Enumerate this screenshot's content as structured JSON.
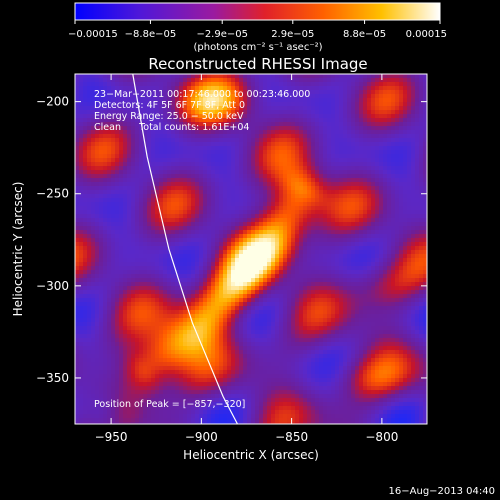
{
  "chart_data": {
    "type": "heatmap",
    "title": "Reconstructed RHESSI Image",
    "xlabel": "Heliocentric X (arcsec)",
    "ylabel": "Heliocentric Y (arcsec)",
    "xlim": [
      -970,
      -775
    ],
    "ylim": [
      -375,
      -185
    ],
    "x_ticks": [
      -950,
      -900,
      -850,
      -800
    ],
    "x_tick_labels": [
      "−950",
      "−900",
      "−850",
      "−800"
    ],
    "y_ticks": [
      -200,
      -250,
      -300,
      -350
    ],
    "y_tick_labels": [
      "−200",
      "−250",
      "−300",
      "−350"
    ],
    "colorbar": {
      "range": [
        -0.00015,
        0.00015
      ],
      "ticks": [
        -0.00015,
        -8.8e-05,
        -2.9e-05,
        2.9e-05,
        8.8e-05,
        0.00015
      ],
      "tick_labels": [
        "−0.00015",
        "−8.8e−05",
        "−2.9e−05",
        "2.9e−05",
        "8.8e−05",
        "0.00015"
      ],
      "units_label": "(photons cm⁻² s⁻¹ asec⁻²)",
      "colors": [
        "#1030ff",
        "#7020d0",
        "#d02040",
        "#ff6000",
        "#ffb000",
        "#ffffff"
      ]
    },
    "annotations": [
      "23−Mar−2011 00:17:46.000 to 00:23:46.000",
      "Detectors: 4F 5F 6F 7F 8F, Att 0",
      "Energy Range: 25.0 − 50.0 keV",
      "Clean      Total counts: 1.61E+04"
    ],
    "peak_label": "Position of Peak = [−857,−320]",
    "peak": {
      "x": -857,
      "y": -320
    },
    "limb_curve": [
      [
        -938,
        -185
      ],
      [
        -930,
        -230
      ],
      [
        -918,
        -280
      ],
      [
        -905,
        -320
      ],
      [
        -888,
        -360
      ],
      [
        -880,
        -375
      ]
    ],
    "bright_ridge": [
      [
        -930,
        -345
      ],
      [
        -905,
        -325
      ],
      [
        -880,
        -300
      ],
      [
        -860,
        -275
      ],
      [
        -845,
        -250
      ]
    ],
    "footer_timestamp": "16−Aug−2013 04:40"
  }
}
